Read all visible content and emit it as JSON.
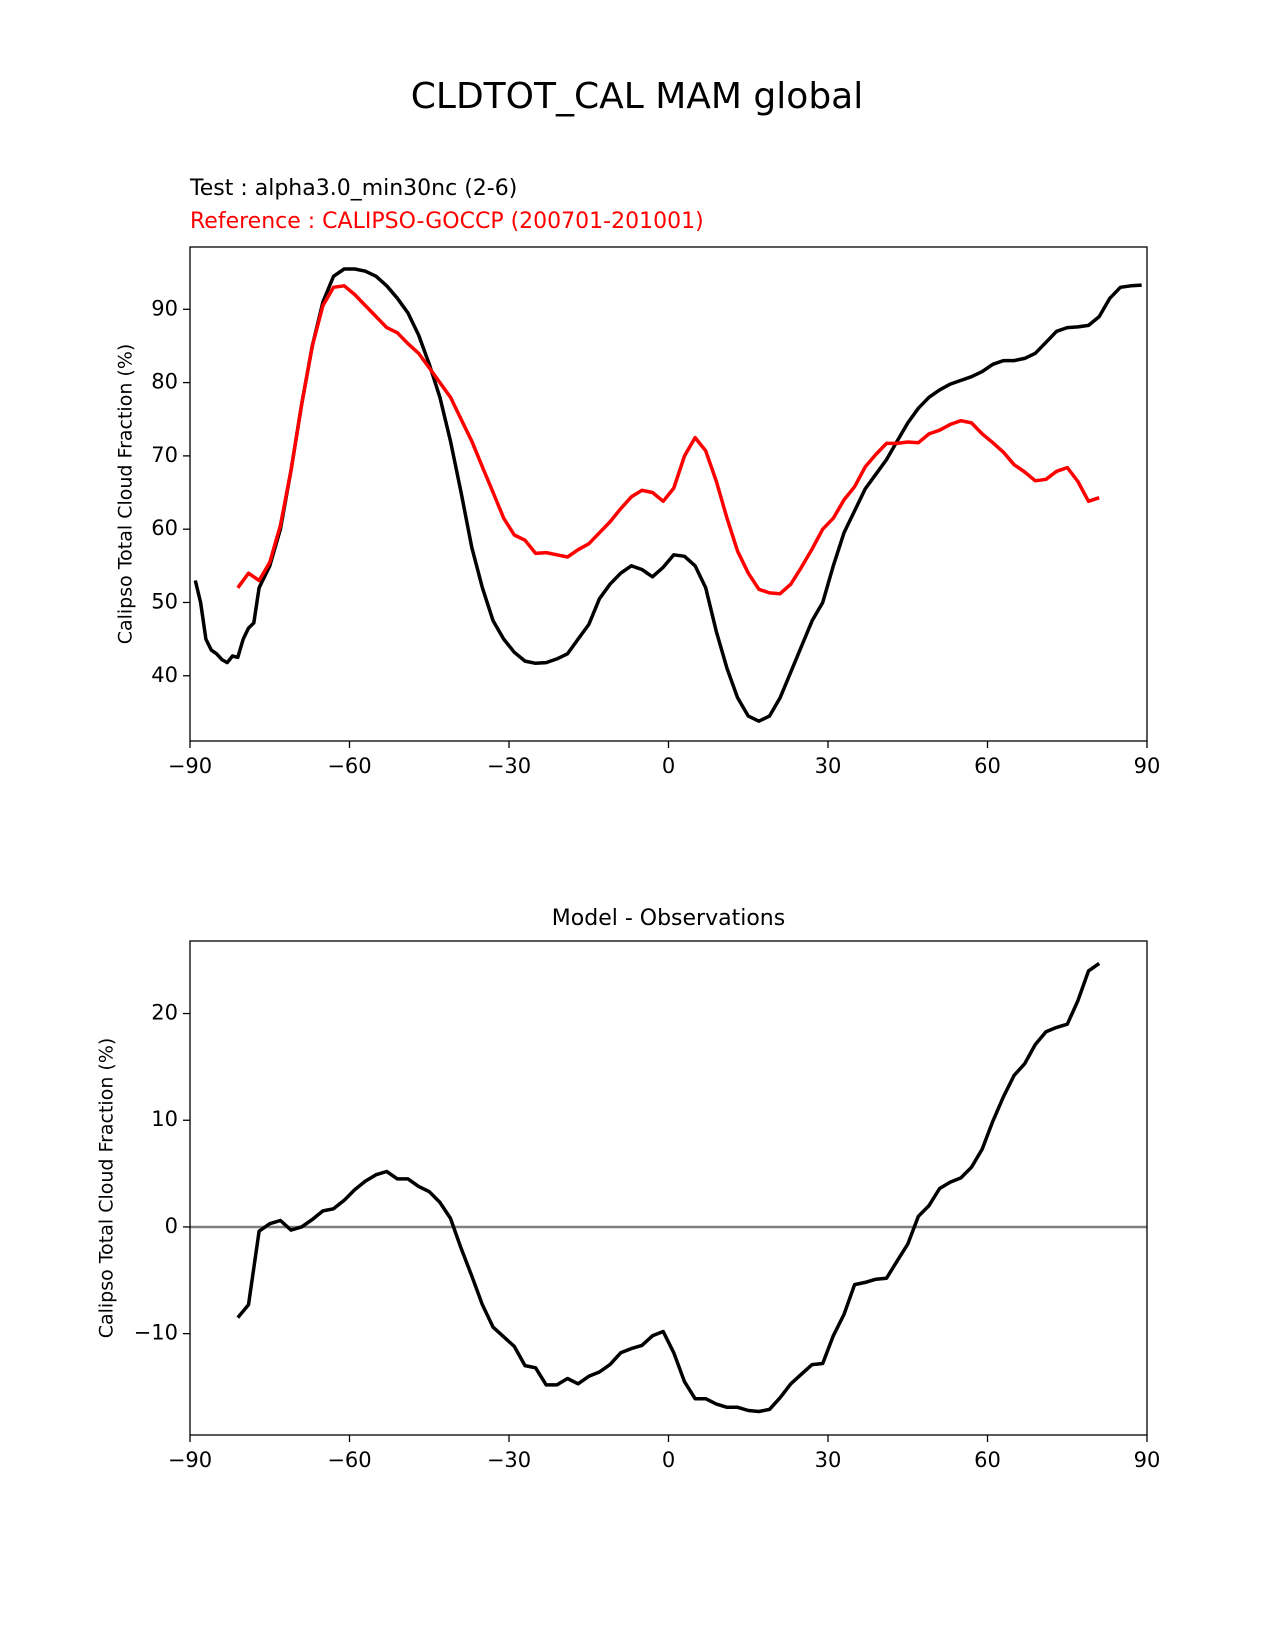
{
  "title": "CLDTOT_CAL MAM global",
  "chart_data": [
    {
      "type": "line",
      "test_label": "Test : alpha3.0_min30nc (2-6)",
      "reference_label": "Reference : CALIPSO-GOCCP (200701-201001)",
      "reference_color": "#ff0000",
      "y_label": "Calipso Total Cloud Fraction (%)",
      "xlim": [
        -90,
        90
      ],
      "xticks": [
        {
          "value": -90,
          "label": "−90"
        },
        {
          "value": -60,
          "label": "−60"
        },
        {
          "value": -30,
          "label": "−30"
        },
        0,
        30,
        60,
        90
      ],
      "ylim": [
        31.1,
        98.5
      ],
      "yticks": [
        40,
        50,
        60,
        70,
        80,
        90
      ],
      "series": [
        {
          "color": "#000000",
          "x": [
            -89,
            -88,
            -87,
            -86,
            -85,
            -84,
            -83,
            -82,
            -81,
            -80,
            -79,
            -78,
            -77,
            -75,
            -73,
            -71,
            -69,
            -67,
            -65,
            -63,
            -61,
            -59,
            -57,
            -55,
            -53,
            -51,
            -49,
            -47,
            -45,
            -43,
            -41,
            -39,
            -37,
            -35,
            -33,
            -31,
            -29,
            -27,
            -25,
            -23,
            -21,
            -19,
            -17,
            -15,
            -13,
            -11,
            -9,
            -7,
            -5,
            -3,
            -1,
            1,
            3,
            5,
            7,
            9,
            11,
            13,
            15,
            17,
            19,
            21,
            23,
            25,
            27,
            29,
            31,
            33,
            35,
            37,
            39,
            41,
            43,
            45,
            47,
            49,
            51,
            53,
            55,
            57,
            59,
            61,
            63,
            65,
            67,
            69,
            71,
            73,
            75,
            77,
            79,
            81,
            83,
            85,
            87,
            89
          ],
          "values": [
            53,
            50,
            45,
            43.5,
            43,
            42.2,
            41.8,
            42.7,
            42.5,
            45,
            46.5,
            47.2,
            52,
            55,
            60,
            68,
            77,
            85,
            91,
            94.5,
            95.5,
            95.5,
            95.2,
            94.5,
            93.2,
            91.5,
            89.5,
            86.5,
            82.5,
            78,
            72,
            65,
            57.5,
            52,
            47.5,
            45,
            43.2,
            42,
            41.7,
            41.8,
            42.3,
            43,
            45,
            47,
            50.5,
            52.5,
            54,
            55,
            54.5,
            53.5,
            54.8,
            56.5,
            56.3,
            55,
            52,
            46,
            41,
            37,
            34.5,
            33.8,
            34.5,
            37,
            40.5,
            44,
            47.5,
            50,
            55,
            59.5,
            62.5,
            65.5,
            67.5,
            69.5,
            72,
            74.5,
            76.5,
            78,
            79,
            79.8,
            80.3,
            80.8,
            81.5,
            82.5,
            83,
            83,
            83.3,
            84,
            85.5,
            87,
            87.5,
            87.6,
            87.8,
            89,
            91.5,
            93,
            93.2,
            93.3
          ]
        },
        {
          "color": "#ff0000",
          "x": [
            -81,
            -79,
            -77,
            -75,
            -73,
            -71,
            -69,
            -67,
            -65,
            -63,
            -61,
            -59,
            -57,
            -55,
            -53,
            -51,
            -49,
            -47,
            -45,
            -43,
            -41,
            -39,
            -37,
            -35,
            -33,
            -31,
            -29,
            -27,
            -25,
            -23,
            -21,
            -19,
            -17,
            -15,
            -13,
            -11,
            -9,
            -7,
            -5,
            -3,
            -1,
            1,
            3,
            5,
            7,
            9,
            11,
            13,
            15,
            17,
            19,
            21,
            23,
            25,
            27,
            29,
            31,
            33,
            35,
            37,
            39,
            41,
            43,
            45,
            47,
            49,
            51,
            53,
            55,
            57,
            59,
            61,
            63,
            65,
            67,
            69,
            71,
            73,
            75,
            77,
            79,
            81
          ],
          "values": [
            52,
            54,
            53,
            55.5,
            60.5,
            68,
            77,
            85,
            90.5,
            93,
            93.2,
            92,
            90.5,
            89,
            87.5,
            86.8,
            85.3,
            84,
            82,
            80,
            78,
            75,
            72,
            68.5,
            65,
            61.5,
            59.2,
            58.5,
            56.7,
            56.8,
            56.5,
            56.2,
            57.2,
            58,
            59.5,
            61,
            62.8,
            64.4,
            65.3,
            65,
            63.8,
            65.6,
            70,
            72.5,
            70.7,
            66.5,
            61.5,
            57,
            54,
            51.8,
            51.3,
            51.2,
            52.5,
            54.8,
            57.3,
            60,
            61.5,
            64,
            65.8,
            68.5,
            70.2,
            71.7,
            71.7,
            71.9,
            71.8,
            73,
            73.5,
            74.3,
            74.8,
            74.5,
            73,
            71.8,
            70.5,
            68.8,
            67.8,
            66.6,
            66.8,
            67.9,
            68.4,
            66.5,
            63.8,
            64.3
          ]
        }
      ]
    },
    {
      "type": "line",
      "title": "Model - Observations",
      "y_label": "Calipso Total Cloud Fraction (%)",
      "hline": {
        "value": 0,
        "color": "#808080"
      },
      "xlim": [
        -90,
        90
      ],
      "xticks": [
        {
          "value": -90,
          "label": "−90"
        },
        {
          "value": -60,
          "label": "−60"
        },
        {
          "value": -30,
          "label": "−30"
        },
        0,
        30,
        60,
        90
      ],
      "ylim": [
        -19.5,
        26.8
      ],
      "yticks": [
        {
          "value": -10,
          "label": "−10"
        },
        0,
        10,
        20
      ],
      "series": [
        {
          "color": "#000000",
          "x": [
            -81,
            -79,
            -77,
            -75,
            -73,
            -71,
            -69,
            -67,
            -65,
            -63,
            -61,
            -59,
            -57,
            -55,
            -53,
            -51,
            -49,
            -47,
            -45,
            -43,
            -41,
            -39,
            -37,
            -35,
            -33,
            -31,
            -29,
            -27,
            -25,
            -23,
            -21,
            -19,
            -17,
            -15,
            -13,
            -11,
            -9,
            -7,
            -5,
            -3,
            -1,
            1,
            3,
            5,
            7,
            9,
            11,
            13,
            15,
            17,
            19,
            21,
            23,
            25,
            27,
            29,
            31,
            33,
            35,
            37,
            39,
            41,
            43,
            45,
            47,
            49,
            51,
            53,
            55,
            57,
            59,
            61,
            63,
            65,
            67,
            69,
            71,
            73,
            75,
            77,
            79,
            81
          ],
          "values": [
            -8.5,
            -7.3,
            -0.4,
            0.3,
            0.6,
            -0.3,
            0,
            0.7,
            1.5,
            1.7,
            2.5,
            3.5,
            4.3,
            4.9,
            5.2,
            4.5,
            4.5,
            3.8,
            3.3,
            2.3,
            0.8,
            -2,
            -4.6,
            -7.3,
            -9.4,
            -10.3,
            -11.2,
            -13,
            -13.2,
            -14.8,
            -14.8,
            -14.2,
            -14.7,
            -14,
            -13.6,
            -12.9,
            -11.8,
            -11.4,
            -11.1,
            -10.2,
            -9.8,
            -11.8,
            -14.5,
            -16.1,
            -16.1,
            -16.6,
            -16.9,
            -16.9,
            -17.2,
            -17.3,
            -17.1,
            -16,
            -14.7,
            -13.8,
            -12.9,
            -12.8,
            -10.2,
            -8.2,
            -5.4,
            -5.2,
            -4.9,
            -4.8,
            -3.2,
            -1.6,
            1,
            2,
            3.6,
            4.2,
            4.6,
            5.6,
            7.3,
            9.9,
            12.2,
            14.2,
            15.3,
            17.1,
            18.3,
            18.7,
            19,
            21.2,
            24,
            24.7
          ]
        }
      ]
    }
  ]
}
